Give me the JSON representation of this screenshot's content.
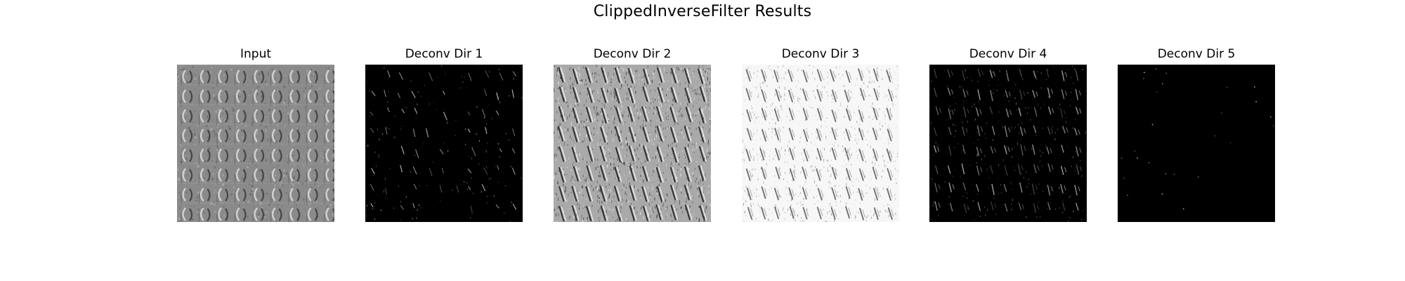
{
  "figure": {
    "title": "ClippedInverseFilter Results"
  },
  "panels": [
    {
      "title": "Input",
      "tone": "mid-gray"
    },
    {
      "title": "Deconv Dir 1",
      "tone": "dark-sparse"
    },
    {
      "title": "Deconv Dir 2",
      "tone": "gray-texture"
    },
    {
      "title": "Deconv Dir 3",
      "tone": "light-texture"
    },
    {
      "title": "Deconv Dir 4",
      "tone": "dark-texture"
    },
    {
      "title": "Deconv Dir 5",
      "tone": "black-dots"
    }
  ]
}
